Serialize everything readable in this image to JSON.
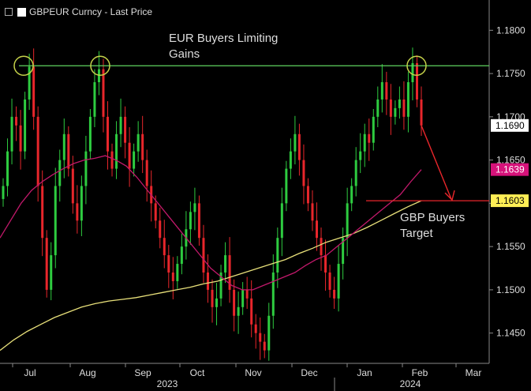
{
  "chart_data": {
    "type": "candlestick",
    "title": "GBPEUR Curncy - Last Price",
    "y_range": [
      1.1415,
      1.1835
    ],
    "y_ticks": [
      "1.1800",
      "1.1750",
      "1.1700",
      "1.1650",
      "1.1600",
      "1.1550",
      "1.1500",
      "1.1450"
    ],
    "x_axis": {
      "months": [
        "Jul",
        "Aug",
        "Sep",
        "Oct",
        "Nov",
        "Dec",
        "Jan",
        "Feb",
        "Mar"
      ],
      "years": [
        "2023",
        "2024"
      ]
    },
    "price_labels": {
      "last": "1.1690",
      "ma_short": "1.1639",
      "ma_long": "1.1603"
    },
    "resistance_level": 1.1759,
    "target_level": 1.1603,
    "annotations": {
      "resistance": "EUR Buyers Limiting Gains",
      "target": "GBP Buyers Target"
    },
    "close_series": [
      1.162,
      1.166,
      1.17,
      1.169,
      1.166,
      1.172,
      1.1758,
      1.17,
      1.162,
      1.156,
      1.15,
      1.154,
      1.162,
      1.165,
      1.168,
      1.164,
      1.16,
      1.158,
      1.162,
      1.166,
      1.17,
      1.174,
      1.1755,
      1.17,
      1.166,
      1.164,
      1.168,
      1.17,
      1.167,
      1.164,
      1.166,
      1.168,
      1.165,
      1.162,
      1.16,
      1.158,
      1.156,
      1.154,
      1.152,
      1.151,
      1.153,
      1.155,
      1.157,
      1.159,
      1.16,
      1.156,
      1.152,
      1.15,
      1.148,
      1.149,
      1.152,
      1.154,
      1.15,
      1.147,
      1.148,
      1.15,
      1.149,
      1.146,
      1.145,
      1.144,
      1.143,
      1.147,
      1.152,
      1.156,
      1.16,
      1.164,
      1.166,
      1.168,
      1.165,
      1.162,
      1.16,
      1.158,
      1.156,
      1.154,
      1.152,
      1.15,
      1.149,
      1.153,
      1.156,
      1.16,
      1.162,
      1.165,
      1.166,
      1.168,
      1.167,
      1.17,
      1.172,
      1.174,
      1.172,
      1.17,
      1.171,
      1.172,
      1.17,
      1.174,
      1.1762,
      1.172,
      1.169
    ],
    "ma_short_series": [
      1.156,
      1.158,
      1.16,
      1.1615,
      1.1625,
      1.1633,
      1.164,
      1.1646,
      1.165,
      1.1652,
      1.1655,
      1.165,
      1.1643,
      1.163,
      1.1615,
      1.16,
      1.1585,
      1.157,
      1.1555,
      1.154,
      1.1525,
      1.1515,
      1.1505,
      1.15,
      1.15,
      1.1505,
      1.151,
      1.1515,
      1.152,
      1.1528,
      1.1535,
      1.154,
      1.155,
      1.156,
      1.157,
      1.158,
      1.159,
      1.16,
      1.161,
      1.1625,
      1.1639
    ],
    "ma_long_series": [
      1.143,
      1.1442,
      1.1452,
      1.146,
      1.1468,
      1.1474,
      1.148,
      1.1484,
      1.1487,
      1.1489,
      1.1491,
      1.1494,
      1.1497,
      1.15,
      1.1503,
      1.1507,
      1.151,
      1.1515,
      1.152,
      1.1525,
      1.153,
      1.1535,
      1.1542,
      1.1548,
      1.1555,
      1.156,
      1.1565,
      1.1572,
      1.158,
      1.1588,
      1.1596,
      1.1603
    ]
  }
}
